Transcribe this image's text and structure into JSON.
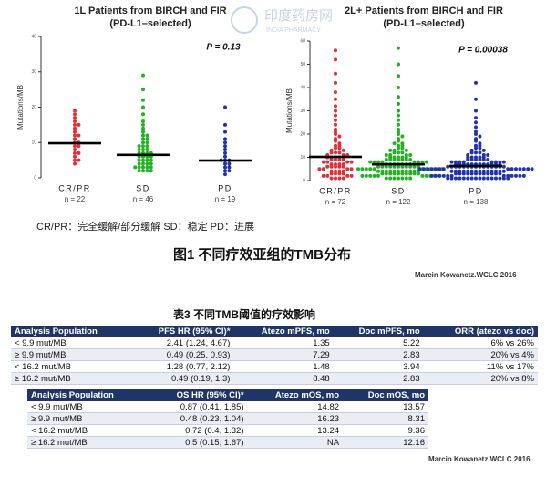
{
  "chart_data": [
    {
      "type": "strip",
      "title": "1L Patients from BIRCH and FIR",
      "subtitle": "(PD-L1–selected)",
      "ylabel": "Mutations/MB",
      "annotation": "P = 0.13",
      "categories": [
        "CR/PR",
        "SD",
        "PD"
      ],
      "n_labels": [
        "n = 22",
        "n = 46",
        "n = 19"
      ],
      "colors": [
        "#e0303a",
        "#22b322",
        "#2233aa"
      ],
      "ylim": [
        0,
        40
      ],
      "yticks": [
        0,
        10,
        20,
        30,
        40
      ],
      "medians": [
        9.8,
        6.5,
        4.9
      ],
      "values": [
        [
          19,
          18,
          17,
          16,
          15,
          15,
          14,
          13,
          12,
          12,
          11,
          10,
          10,
          9,
          9,
          8,
          7,
          7,
          6,
          5,
          5,
          4
        ],
        [
          29,
          25,
          22,
          20,
          18,
          16,
          15,
          14,
          13,
          12,
          12,
          11,
          11,
          10,
          10,
          9,
          9,
          9,
          8,
          8,
          8,
          7,
          7,
          7,
          7,
          6,
          6,
          6,
          6,
          5,
          5,
          5,
          5,
          4,
          4,
          4,
          4,
          3,
          3,
          3,
          3,
          3,
          2,
          2,
          2,
          2
        ],
        [
          20,
          15,
          13,
          11,
          10,
          9,
          8,
          7,
          6,
          5,
          5,
          5,
          4,
          4,
          3,
          3,
          2,
          2,
          1
        ]
      ]
    },
    {
      "type": "strip",
      "title": "2L+ Patients from BIRCH and FIR",
      "subtitle": "(PD-L1–selected)",
      "ylabel": "Mutations/MB",
      "annotation": "P = 0.00038",
      "categories": [
        "CR/PR",
        "SD",
        "PD"
      ],
      "n_labels": [
        "n = 72",
        "n = 122",
        "n = 138"
      ],
      "colors": [
        "#e0303a",
        "#22b322",
        "#2233aa"
      ],
      "ylim": [
        0,
        60
      ],
      "yticks": [
        0,
        10,
        20,
        30,
        40,
        50,
        60
      ],
      "medians": [
        10.2,
        7,
        6.3
      ],
      "values": [
        [
          56,
          52,
          46,
          42,
          38,
          35,
          32,
          30,
          28,
          26,
          24,
          22,
          21,
          20,
          19,
          18,
          17,
          16,
          15,
          15,
          14,
          14,
          13,
          13,
          12,
          12,
          12,
          11,
          11,
          11,
          10,
          10,
          10,
          10,
          10,
          9,
          9,
          9,
          9,
          8,
          8,
          8,
          8,
          7,
          7,
          7,
          7,
          6,
          6,
          6,
          6,
          6,
          5,
          5,
          5,
          5,
          4,
          4,
          4,
          4,
          3,
          3,
          3,
          3,
          2,
          2,
          2,
          2,
          1,
          1,
          1,
          1
        ],
        [
          57,
          50,
          45,
          40,
          36,
          33,
          30,
          28,
          26,
          24,
          22,
          21,
          20,
          19,
          18,
          17,
          16,
          16,
          15,
          15,
          14,
          14,
          13,
          13,
          13,
          12,
          12,
          12,
          11,
          11,
          11,
          11,
          10,
          10,
          10,
          10,
          10,
          9,
          9,
          9,
          9,
          9,
          9,
          9,
          8,
          8,
          8,
          8,
          8,
          8,
          8,
          8,
          7,
          7,
          7,
          7,
          7,
          7,
          7,
          7,
          7,
          7,
          7,
          6,
          6,
          6,
          6,
          6,
          6,
          6,
          6,
          6,
          6,
          6,
          5,
          5,
          5,
          5,
          5,
          5,
          5,
          5,
          5,
          5,
          5,
          4,
          4,
          4,
          4,
          4,
          4,
          4,
          4,
          4,
          4,
          4,
          3,
          3,
          3,
          3,
          3,
          3,
          3,
          3,
          3,
          3,
          2,
          2,
          2,
          2,
          2,
          2,
          2,
          2,
          2,
          1,
          1,
          1,
          1,
          1,
          1,
          1
        ],
        [
          42,
          35,
          30,
          27,
          25,
          23,
          21,
          20,
          19,
          18,
          17,
          16,
          15,
          15,
          14,
          14,
          13,
          13,
          12,
          12,
          12,
          11,
          11,
          11,
          10,
          10,
          10,
          10,
          10,
          9,
          9,
          9,
          9,
          9,
          9,
          8,
          8,
          8,
          8,
          8,
          8,
          8,
          8,
          7,
          7,
          7,
          7,
          7,
          7,
          7,
          7,
          7,
          7,
          7,
          7,
          6,
          6,
          6,
          6,
          6,
          6,
          6,
          6,
          6,
          6,
          6,
          6,
          6,
          6,
          6,
          5,
          5,
          5,
          5,
          5,
          5,
          5,
          5,
          5,
          5,
          5,
          5,
          5,
          5,
          4,
          4,
          4,
          4,
          4,
          4,
          4,
          4,
          4,
          4,
          4,
          4,
          4,
          4,
          3,
          3,
          3,
          3,
          3,
          3,
          3,
          3,
          3,
          3,
          3,
          3,
          2,
          2,
          2,
          2,
          2,
          2,
          2,
          2,
          2,
          2,
          2,
          2,
          1,
          1,
          1,
          1,
          1,
          1,
          1,
          1,
          1,
          1,
          1,
          1,
          1,
          1,
          1,
          1
        ]
      ]
    }
  ],
  "watermark": [
    "印度药房网",
    "INDIA PHARMACY"
  ],
  "legend_note": "CR/PR：完全缓解/部分缓解 SD：稳定 PD：进展",
  "figure_caption": "图1 不同疗效亚组的TMB分布",
  "figure_source": "Marcin Kowanetz.WCLC 2016",
  "table_title": "表3 不同TMB阈值的疗效影响",
  "table1": {
    "headers": [
      "Analysis Population",
      "PFS HR (95% CI)*",
      "Atezo mPFS, mo",
      "Doc mPFS, mo",
      "ORR (atezo vs doc)"
    ],
    "rows": [
      [
        "< 9.9 mut/MB",
        "2.41 (1.24, 4.67)",
        "1.35",
        "5.22",
        "6% vs 26%"
      ],
      [
        "≥ 9.9 mut/MB",
        "0.49 (0.25, 0.93)",
        "7.29",
        "2.83",
        "20% vs 4%"
      ],
      [
        "< 16.2 mut/MB",
        "1.28 (0.77, 2.12)",
        "1.48",
        "3.94",
        "11% vs 17%"
      ],
      [
        "≥ 16.2 mut/MB",
        "0.49 (0.19, 1.3)",
        "8.48",
        "2.83",
        "20% vs 8%"
      ]
    ]
  },
  "table2": {
    "headers": [
      "Analysis Population",
      "OS HR (95% CI)*",
      "Atezo mOS, mo",
      "Doc mOS, mo"
    ],
    "rows": [
      [
        "< 9.9 mut/MB",
        "0.87 (0.41, 1.85)",
        "14.82",
        "13.57"
      ],
      [
        "≥ 9.9 mut/MB",
        "0.48 (0.23, 1.04)",
        "16.23",
        "8.31"
      ],
      [
        "< 16.2 mut/MB",
        "0.72 (0.4, 1.32)",
        "13.24",
        "9.36"
      ],
      [
        "≥ 16.2 mut/MB",
        "0.5 (0.15, 1.67)",
        "NA",
        "12.16"
      ]
    ]
  },
  "table_source": "Marcin Kowanetz.WCLC 2016"
}
